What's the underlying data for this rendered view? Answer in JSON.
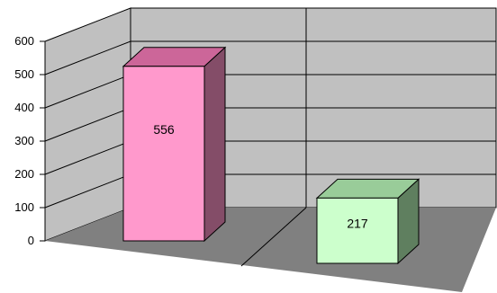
{
  "chart_data": {
    "type": "bar",
    "style": "3d-column",
    "categories": [
      "",
      ""
    ],
    "values": [
      556,
      217
    ],
    "data_labels": [
      "556",
      "217"
    ],
    "ylim": [
      0,
      600
    ],
    "yticks": [
      0,
      100,
      200,
      300,
      400,
      500,
      600
    ],
    "yticks_labels": [
      "0",
      "100",
      "200",
      "300",
      "400",
      "500",
      "600"
    ],
    "grid": true,
    "legend": "none",
    "colors": {
      "bars": [
        "#ff99cc",
        "#ccffcc"
      ],
      "bar_sides": [
        "#844d68",
        "#5f7f5f"
      ],
      "bar_tops": [
        "#cc6699",
        "#99cc99"
      ],
      "walls": "#c0c0c0",
      "floor": "#808080",
      "grid": "#000000"
    }
  }
}
